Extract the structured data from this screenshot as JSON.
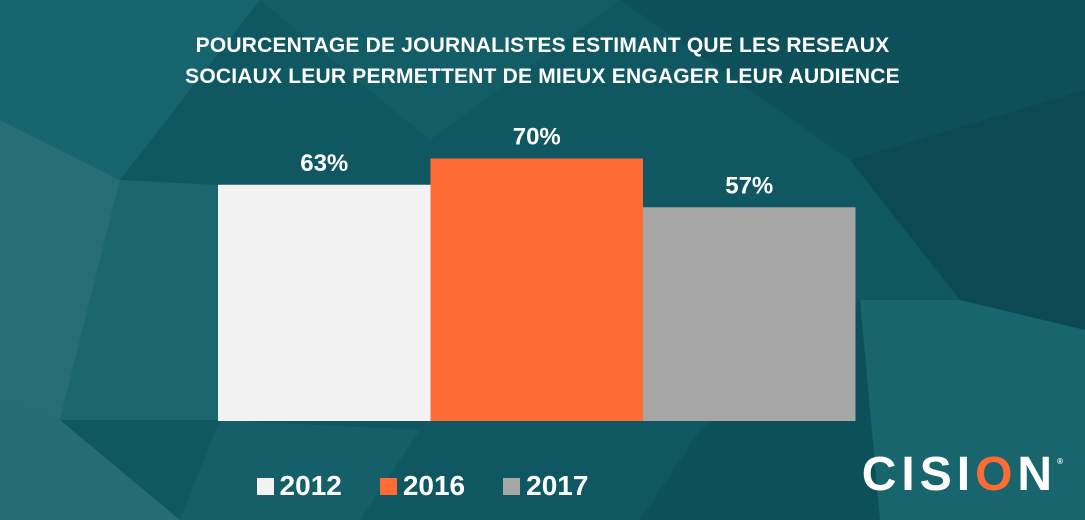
{
  "title_lines": [
    "POURCENTAGE DE JOURNALISTES ESTIMANT QUE LES RESEAUX",
    "SOCIAUX LEUR PERMETTENT DE MIEUX ENGAGER LEUR AUDIENCE"
  ],
  "logo": {
    "text_before": "CISI",
    "text_o": "O",
    "text_after": "N",
    "registered": "®",
    "accent_color": "#ff6b35"
  },
  "chart_data": {
    "type": "bar",
    "categories": [
      "2012",
      "2016",
      "2017"
    ],
    "values": [
      63,
      70,
      57
    ],
    "value_labels": [
      "63%",
      "70%",
      "57%"
    ],
    "colors": [
      "#f2f2f2",
      "#ff6b35",
      "#a6a6a6"
    ],
    "title": "POURCENTAGE DE JOURNALISTES ESTIMANT QUE LES RESEAUX SOCIAUX LEUR PERMETTENT DE MIEUX ENGAGER LEUR AUDIENCE",
    "xlabel": "",
    "ylabel": "",
    "ylim": [
      0,
      100
    ],
    "grid": false,
    "legend_position": "bottom"
  },
  "legend": [
    {
      "label": "2012",
      "color": "#f2f2f2"
    },
    {
      "label": "2016",
      "color": "#ff6b35"
    },
    {
      "label": "2017",
      "color": "#a6a6a6"
    }
  ]
}
